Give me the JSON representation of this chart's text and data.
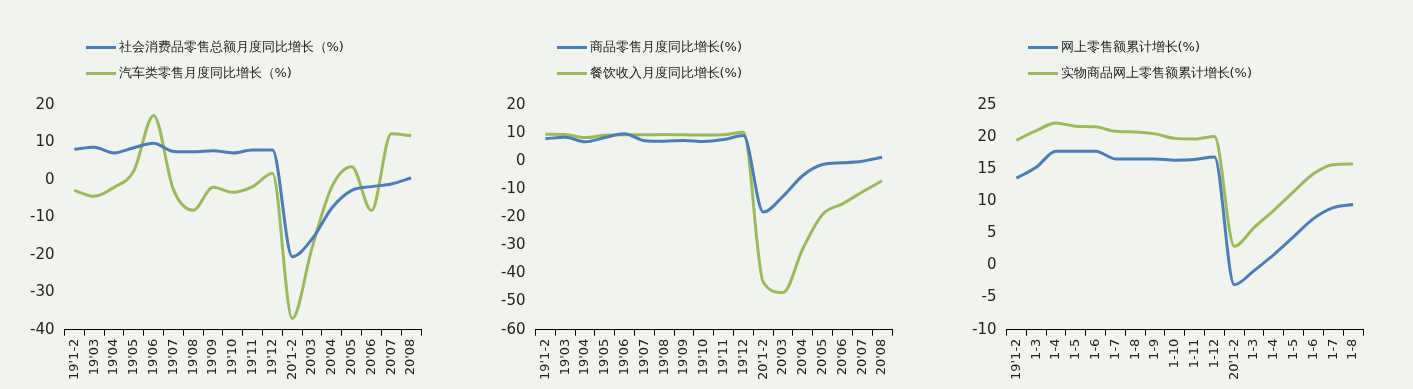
{
  "chart_data": [
    {
      "type": "line",
      "categories": [
        "19'1-2",
        "19'03",
        "19'04",
        "19'05",
        "19'06",
        "19'07",
        "19'08",
        "19'09",
        "19'10",
        "19'11",
        "19'12",
        "20'1-2",
        "20'03",
        "20'04",
        "20'05",
        "20'06",
        "20'07",
        "20'08"
      ],
      "series": [
        {
          "name": "社会消费品零售总额月度同比增长（%)",
          "color": "#4a7ebb",
          "values": [
            8.2,
            8.7,
            7.2,
            8.6,
            9.8,
            7.6,
            7.5,
            7.8,
            7.2,
            8.0,
            8.0,
            -20.5,
            -15.8,
            -7.5,
            -2.8,
            -1.8,
            -1.1,
            0.5
          ]
        },
        {
          "name": "汽车类零售月度同比增长（%)",
          "color": "#9bbb59",
          "values": [
            -2.8,
            -4.4,
            -2.0,
            2.4,
            17.2,
            -2.6,
            -8.1,
            -2.0,
            -3.3,
            -1.8,
            1.8,
            -37.0,
            -18.1,
            -1.8,
            3.5,
            -8.2,
            12.3,
            11.8
          ]
        }
      ],
      "ylim": [
        -40,
        20
      ],
      "yticks": [
        -40,
        -30,
        -20,
        -10,
        0,
        10,
        20
      ],
      "grid": false,
      "legend": "top",
      "marker": "none"
    },
    {
      "type": "line",
      "categories": [
        "19'1-2",
        "19'03",
        "19'04",
        "19'05",
        "19'06",
        "19'07",
        "19'08",
        "19'09",
        "19'10",
        "19'11",
        "19'12",
        "20'1-2",
        "20'03",
        "20'04",
        "20'05",
        "20'06",
        "20'07",
        "20'08"
      ],
      "series": [
        {
          "name": "商品零售月度同比增长(%)",
          "color": "#4a7ebb",
          "values": [
            8.0,
            8.5,
            6.9,
            8.4,
            9.8,
            7.3,
            7.1,
            7.4,
            7.0,
            7.7,
            9.1,
            -18.1,
            -12.5,
            -5.1,
            -1.2,
            -0.6,
            0.0,
            1.4
          ]
        },
        {
          "name": "餐饮收入月度同比增长(%)",
          "color": "#9bbb59",
          "values": [
            9.6,
            9.5,
            8.4,
            9.2,
            9.4,
            9.4,
            9.5,
            9.4,
            9.3,
            9.4,
            10.3,
            -43.1,
            -46.8,
            -31.1,
            -18.9,
            -15.2,
            -11.0,
            -7.0
          ]
        }
      ],
      "ylim": [
        -60,
        20
      ],
      "yticks": [
        -60,
        -50,
        -40,
        -30,
        -20,
        -10,
        0,
        10,
        20
      ],
      "grid": false,
      "legend": "top",
      "marker": "none"
    },
    {
      "type": "line",
      "categories": [
        "19'1-2",
        "1-3",
        "1-4",
        "1-5",
        "1-6",
        "1-7",
        "1-8",
        "1-9",
        "1-10",
        "1-11",
        "1-12",
        "20'1-2",
        "1-3",
        "1-4",
        "1-5",
        "1-6",
        "1-7",
        "1-8"
      ],
      "series": [
        {
          "name": "网上零售额累计增长(%)",
          "color": "#4a7ebb",
          "values": [
            13.6,
            15.3,
            17.8,
            17.8,
            17.8,
            16.6,
            16.6,
            16.6,
            16.4,
            16.5,
            16.9,
            -3.0,
            -0.8,
            1.7,
            4.5,
            7.3,
            9.0,
            9.5
          ]
        },
        {
          "name": "实物商品网上零售额累计增长(%)",
          "color": "#9bbb59",
          "values": [
            19.5,
            21.0,
            22.2,
            21.7,
            21.6,
            20.9,
            20.8,
            20.5,
            19.8,
            19.7,
            20.1,
            3.0,
            5.9,
            8.6,
            11.5,
            14.3,
            15.7,
            15.8
          ]
        }
      ],
      "ylim": [
        -10,
        25
      ],
      "yticks": [
        -10,
        -5,
        0,
        5,
        10,
        15,
        20,
        25
      ],
      "grid": false,
      "legend": "top",
      "marker": "none"
    }
  ]
}
